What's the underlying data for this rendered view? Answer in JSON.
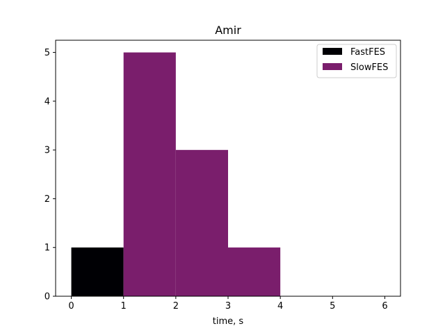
{
  "chart_data": {
    "type": "bar",
    "title": "Amir",
    "xlabel": "time, s",
    "ylabel": "",
    "xlim": [
      -0.3,
      6.3
    ],
    "ylim": [
      0,
      5.25
    ],
    "xticks": [
      0,
      1,
      2,
      3,
      4,
      5,
      6
    ],
    "yticks": [
      0,
      1,
      2,
      3,
      4,
      5
    ],
    "grid": false,
    "legend_position": "upper right",
    "series": [
      {
        "name": "FastFES",
        "color": "#000004",
        "bins": [
          {
            "x0": 0,
            "x1": 1,
            "count": 1
          }
        ]
      },
      {
        "name": "SlowFES",
        "color": "#7a1e6c",
        "bins": [
          {
            "x0": 1,
            "x1": 2,
            "count": 5
          },
          {
            "x0": 2,
            "x1": 3,
            "count": 3
          },
          {
            "x0": 3,
            "x1": 4,
            "count": 1
          }
        ]
      }
    ]
  }
}
